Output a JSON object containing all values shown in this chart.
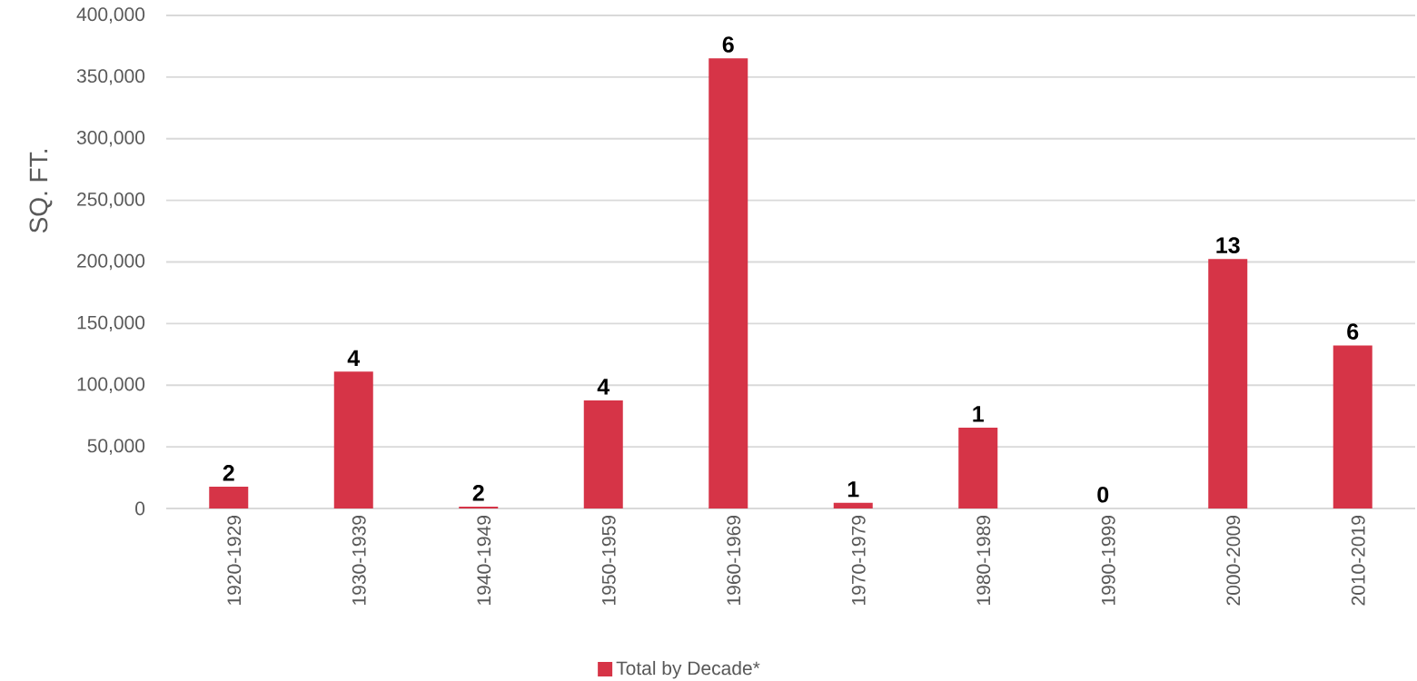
{
  "chart_data": {
    "type": "bar",
    "ylabel": "SQ. FT.",
    "categories": [
      "1920-1929",
      "1930-1939",
      "1940-1949",
      "1950-1959",
      "1960-1969",
      "1970-1979",
      "1980-1989",
      "1990-1999",
      "2000-2009",
      "2010-2019"
    ],
    "series": [
      {
        "name": "Total by Decade*",
        "color": "#d63447",
        "values": [
          17700,
          111000,
          1500,
          87700,
          365200,
          4600,
          65600,
          0,
          202300,
          132300
        ]
      }
    ],
    "annotations": [
      {
        "text": "2",
        "x": "1920-1929",
        "y": 17700
      },
      {
        "text": "4",
        "x": "1930-1939",
        "y": 111000
      },
      {
        "text": "2",
        "x": "1940-1949",
        "y": 1500
      },
      {
        "text": "4",
        "x": "1950-1959",
        "y": 87700
      },
      {
        "text": "6",
        "x": "1960-1969",
        "y": 365200
      },
      {
        "text": "1",
        "x": "1970-1979",
        "y": 4600
      },
      {
        "text": "1",
        "x": "1980-1989",
        "y": 65600
      },
      {
        "text": "0",
        "x": "1990-1999",
        "y": 0
      },
      {
        "text": "13",
        "x": "2000-2009",
        "y": 202300
      },
      {
        "text": "6",
        "x": "2010-2019",
        "y": 132300
      }
    ],
    "ylim": [
      0,
      400000
    ],
    "yticks": [
      0,
      {
        "value": 50000,
        "label": "50,000"
      },
      {
        "value": 100000,
        "label": "100,000"
      },
      {
        "value": 150000,
        "label": "150,000"
      },
      {
        "value": 200000,
        "label": "200,000"
      },
      {
        "value": 250000,
        "label": "250,000"
      },
      {
        "value": 300000,
        "label": "300,000"
      },
      {
        "value": 350000,
        "label": "350,000"
      },
      {
        "value": 400000,
        "label": "400,000"
      }
    ],
    "grid": "y",
    "legend": "bottom"
  }
}
